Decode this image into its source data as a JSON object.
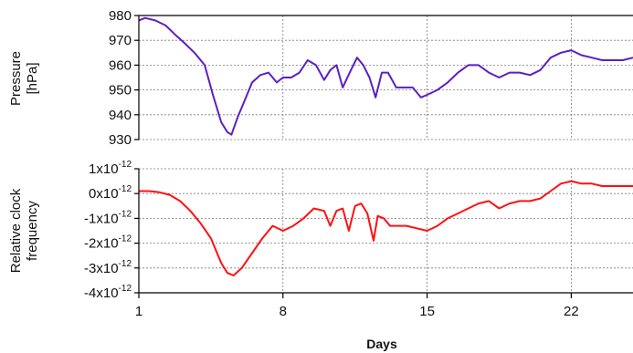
{
  "colors": {
    "pressure_line": "#5b1fc4",
    "clock_line": "#ff1010",
    "grid": "#7a7a7a",
    "axis": "#000000"
  },
  "chart_data": [
    {
      "type": "line",
      "title": "",
      "xlabel": "",
      "ylabel_lines": [
        "Pressure",
        "[hPa]"
      ],
      "xlim": [
        1,
        25
      ],
      "ylim": [
        930,
        980
      ],
      "y_ticks": [
        930,
        940,
        950,
        960,
        970,
        980
      ],
      "y_tick_labels": [
        "930",
        "940",
        "950",
        "960",
        "970",
        "980"
      ],
      "grid": true,
      "series": [
        {
          "x": [
            1.0,
            1.3,
            1.8,
            2.3,
            2.8,
            3.2,
            3.7,
            4.2,
            4.6,
            5.0,
            5.3,
            5.5,
            5.8,
            6.1,
            6.5,
            6.9,
            7.3,
            7.7,
            8.0,
            8.4,
            8.8,
            9.2,
            9.6,
            10.0,
            10.3,
            10.6,
            10.9,
            11.3,
            11.6,
            11.9,
            12.2,
            12.5,
            12.8,
            13.1,
            13.5,
            13.9,
            14.3,
            14.7,
            15.0,
            15.5,
            16.0,
            16.5,
            17.0,
            17.5,
            18.0,
            18.5,
            19.0,
            19.5,
            20.0,
            20.5,
            21.0,
            21.5,
            22.0,
            22.5,
            23.0,
            23.5,
            24.0,
            24.5,
            25.0
          ],
          "values": [
            978,
            979,
            978,
            976,
            972,
            969,
            965,
            960,
            948,
            937,
            933,
            932,
            939,
            945,
            953,
            956,
            957,
            953,
            955,
            955,
            957,
            962,
            960,
            954,
            958,
            960,
            951,
            958,
            963,
            960,
            955,
            947,
            957,
            957,
            951,
            951,
            951,
            947,
            948,
            950,
            953,
            957,
            960,
            960,
            957,
            955,
            957,
            957,
            956,
            958,
            963,
            965,
            966,
            964,
            963,
            962,
            962,
            962,
            963
          ]
        }
      ]
    },
    {
      "type": "line",
      "title": "",
      "xlabel": "Days",
      "ylabel_lines": [
        "Relative clock",
        "frequency"
      ],
      "xlim": [
        1,
        25
      ],
      "ylim": [
        -4e-12,
        1e-12
      ],
      "y_ticks": [
        1e-12,
        0,
        -1e-12,
        -2e-12,
        -3e-12,
        -4e-12
      ],
      "y_tick_labels": [
        {
          "base": "1x10",
          "exp": "-12"
        },
        {
          "base": "0x10",
          "exp": "-12"
        },
        {
          "base": "-1x10",
          "exp": "-12"
        },
        {
          "base": "-2x10",
          "exp": "-12"
        },
        {
          "base": "-3x10",
          "exp": "-12"
        },
        {
          "base": "-4x10",
          "exp": "-12"
        }
      ],
      "x_ticks": [
        1,
        8,
        15,
        22
      ],
      "x_tick_labels": [
        "1",
        "8",
        "15",
        "22"
      ],
      "grid": true,
      "series": [
        {
          "x": [
            1.0,
            1.5,
            2.0,
            2.5,
            3.0,
            3.5,
            4.0,
            4.5,
            5.0,
            5.3,
            5.6,
            6.0,
            6.5,
            7.0,
            7.5,
            8.0,
            8.5,
            9.0,
            9.5,
            10.0,
            10.3,
            10.6,
            10.9,
            11.2,
            11.5,
            11.8,
            12.1,
            12.4,
            12.6,
            12.9,
            13.2,
            13.5,
            14.0,
            14.5,
            15.0,
            15.5,
            16.0,
            16.5,
            17.0,
            17.5,
            18.0,
            18.5,
            19.0,
            19.5,
            20.0,
            20.5,
            21.0,
            21.5,
            22.0,
            22.5,
            23.0,
            23.5,
            24.0,
            24.5,
            25.0
          ],
          "values": [
            1e-13,
            1e-13,
            5e-14,
            -5e-14,
            -3e-13,
            -7e-13,
            -1.2e-12,
            -1.8e-12,
            -2.8e-12,
            -3.2e-12,
            -3.3e-12,
            -3e-12,
            -2.4e-12,
            -1.8e-12,
            -1.3e-12,
            -1.5e-12,
            -1.3e-12,
            -1e-12,
            -6e-13,
            -7e-13,
            -1.3e-12,
            -7e-13,
            -6e-13,
            -1.5e-12,
            -5e-13,
            -4e-13,
            -8e-13,
            -1.9e-12,
            -9e-13,
            -1e-12,
            -1.3e-12,
            -1.3e-12,
            -1.3e-12,
            -1.4e-12,
            -1.5e-12,
            -1.3e-12,
            -1e-12,
            -8e-13,
            -6e-13,
            -4e-13,
            -3e-13,
            -6e-13,
            -4e-13,
            -3e-13,
            -3e-13,
            -2e-13,
            1e-13,
            4e-13,
            5e-13,
            4e-13,
            4e-13,
            3e-13,
            3e-13,
            3e-13,
            3e-13
          ]
        }
      ]
    }
  ]
}
